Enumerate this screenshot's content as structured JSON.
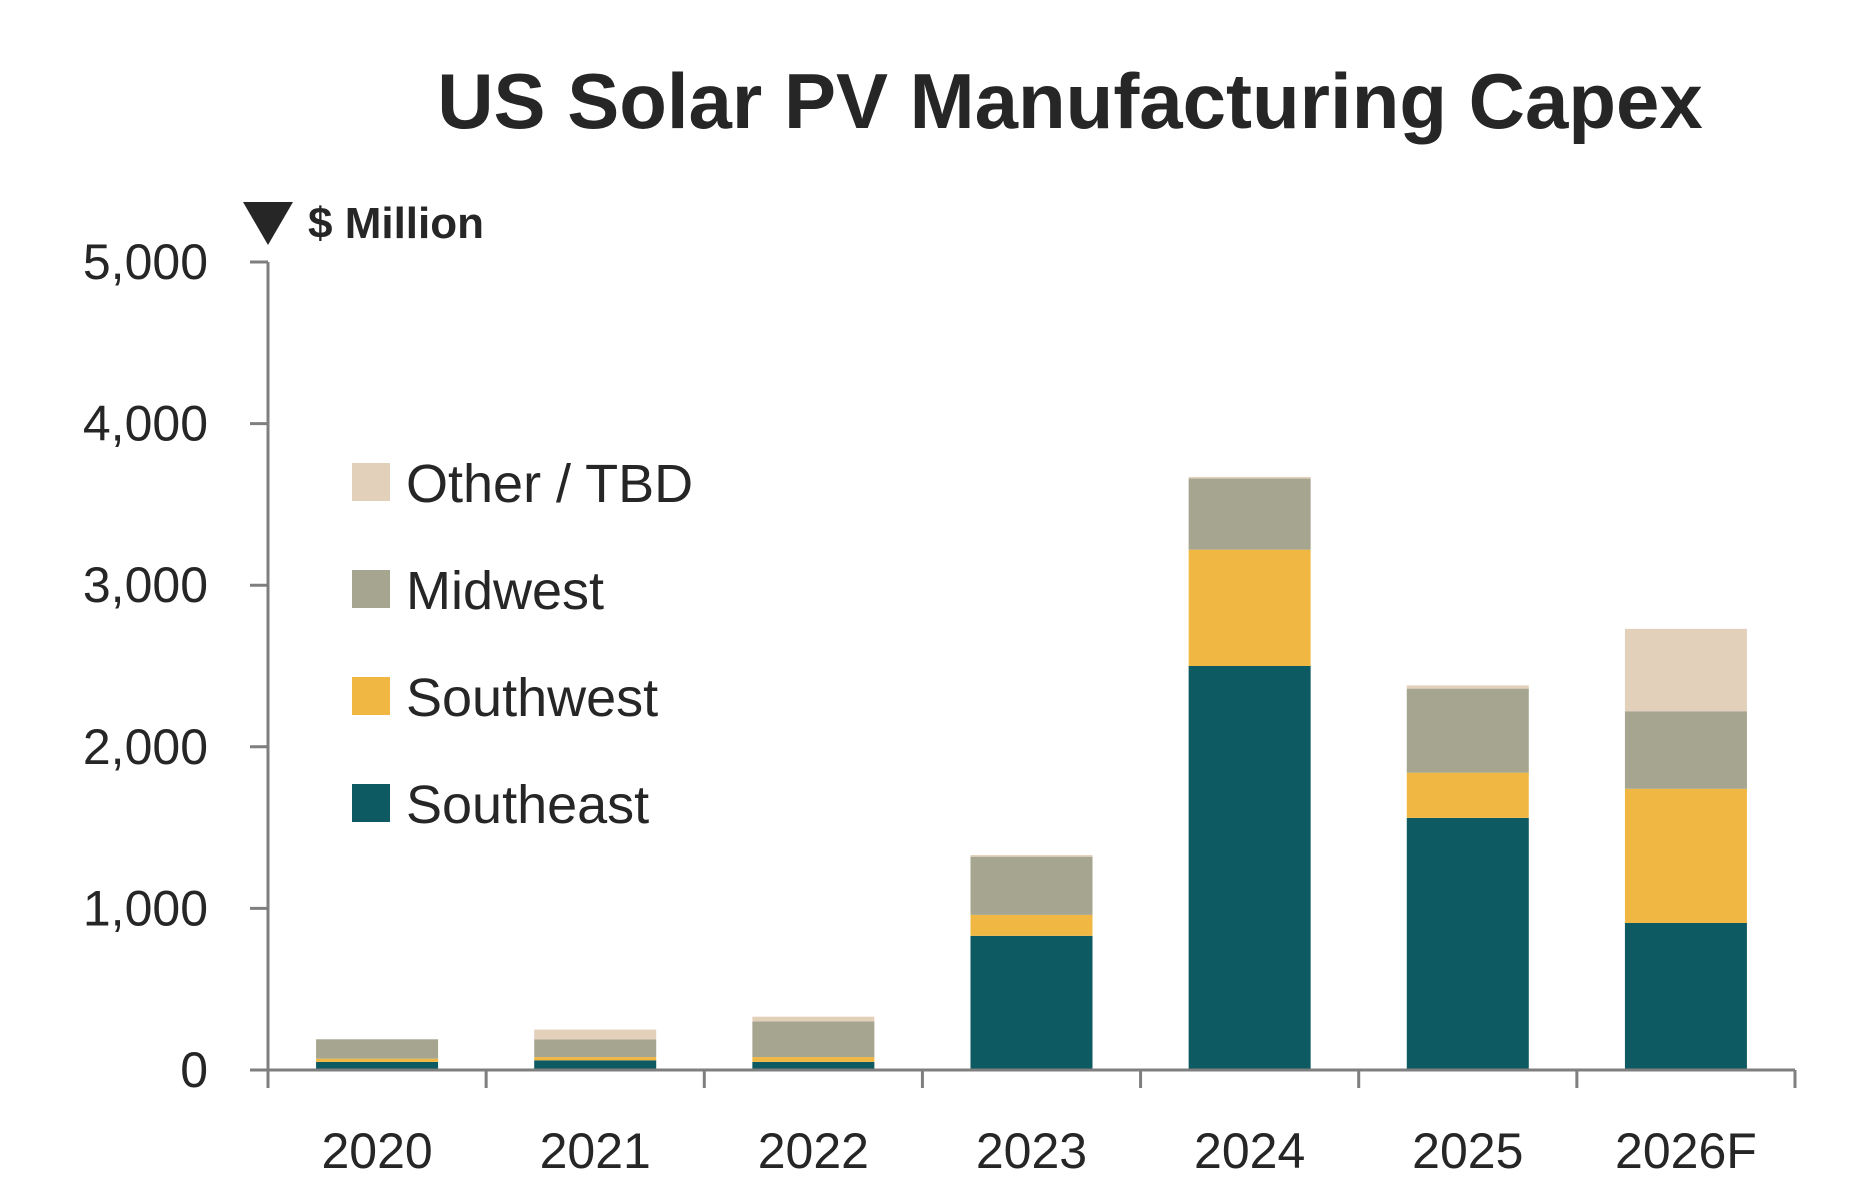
{
  "chart_data": {
    "type": "bar",
    "stacked": true,
    "title": "US Solar PV Manufacturing Capex",
    "ylabel": "$ Million",
    "xlabel": "",
    "ylim": [
      0,
      5000
    ],
    "yticks": [
      0,
      1000,
      2000,
      3000,
      4000,
      5000
    ],
    "ytick_labels": [
      "0",
      "1,000",
      "2,000",
      "3,000",
      "4,000",
      "5,000"
    ],
    "grid": false,
    "legend_position": "left, inside plot",
    "categories": [
      "2020",
      "2021",
      "2022",
      "2023",
      "2024",
      "2025",
      "2026F"
    ],
    "series": [
      {
        "name": "Southeast",
        "color": "#0e5a62",
        "values": [
          50,
          60,
          50,
          830,
          2500,
          1560,
          910
        ]
      },
      {
        "name": "Southwest",
        "color": "#f0b843",
        "values": [
          20,
          20,
          30,
          130,
          720,
          280,
          830
        ]
      },
      {
        "name": "Midwest",
        "color": "#a6a58f",
        "values": [
          120,
          110,
          220,
          360,
          440,
          520,
          480
        ]
      },
      {
        "name": "Other / TBD",
        "color": "#e3d0bb",
        "values": [
          0,
          60,
          30,
          10,
          10,
          20,
          510
        ]
      }
    ],
    "legend_order": [
      "Other / TBD",
      "Midwest",
      "Southwest",
      "Southeast"
    ]
  }
}
